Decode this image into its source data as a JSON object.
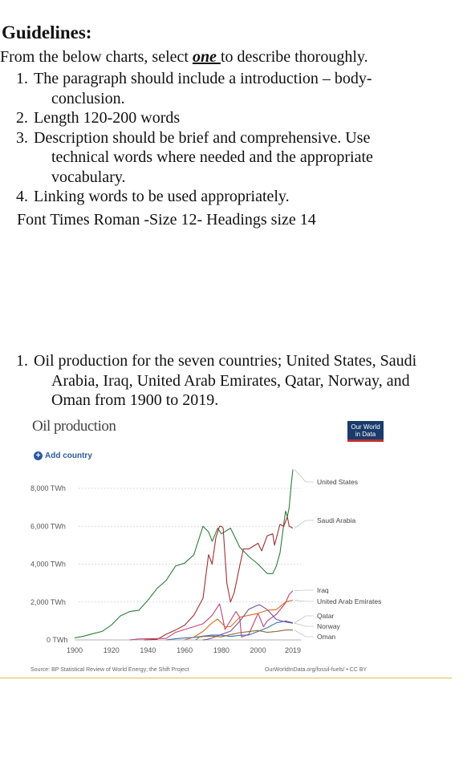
{
  "guidelines": {
    "title": "Guidelines:",
    "intro_before": "From the below charts, select ",
    "intro_emphasis": "one ",
    "intro_after": "to describe thoroughly.",
    "items": [
      {
        "num": "1.",
        "lines": [
          "The paragraph should include a introduction – body-",
          "conclusion."
        ]
      },
      {
        "num": "2.",
        "lines": [
          "Length 120-200 words"
        ]
      },
      {
        "num": "3.",
        "lines": [
          "Description should be brief and comprehensive. Use",
          "technical words where needed and the appropriate",
          "vocabulary."
        ]
      },
      {
        "num": "4.",
        "lines": [
          "Linking words to be used appropriately."
        ]
      }
    ],
    "font_note": "Font Times Roman -Size 12- Headings size 14"
  },
  "task": {
    "num": "1.",
    "lines": [
      "Oil production for the seven countries; United States, Saudi",
      "Arabia, Iraq, United Arab Emirates, Qatar, Norway, and",
      "Oman from 1900 to 2019."
    ]
  },
  "chart": {
    "title": "Oil production",
    "logo_line1": "Our World",
    "logo_line2": "in Data",
    "add_country": "Add country",
    "source": "Source: BP Statistical Review of World Energy; the Shift Project",
    "license": "OurWorldInData.org/fossil-fuels/ • CC BY"
  },
  "chart_data": {
    "type": "line",
    "title": "Oil production",
    "ylabel": "",
    "xlabel": "",
    "x_ticks": [
      "1900",
      "1920",
      "1940",
      "1960",
      "1980",
      "2000",
      "2019"
    ],
    "y_ticks": [
      "0 TWh",
      "2,000 TWh",
      "4,000 TWh",
      "6,000 TWh",
      "8,000 TWh"
    ],
    "xlim": [
      1900,
      2019
    ],
    "ylim": [
      0,
      8000
    ],
    "grid": true,
    "legend": "right",
    "series": [
      {
        "name": "United States",
        "color": "#2e7d3a",
        "points": [
          [
            1900,
            100
          ],
          [
            1905,
            200
          ],
          [
            1910,
            330
          ],
          [
            1915,
            450
          ],
          [
            1920,
            780
          ],
          [
            1925,
            1270
          ],
          [
            1930,
            1500
          ],
          [
            1935,
            1560
          ],
          [
            1940,
            2100
          ],
          [
            1945,
            2720
          ],
          [
            1950,
            3150
          ],
          [
            1955,
            3900
          ],
          [
            1960,
            4050
          ],
          [
            1965,
            4500
          ],
          [
            1970,
            6000
          ],
          [
            1973,
            5700
          ],
          [
            1975,
            5200
          ],
          [
            1978,
            5900
          ],
          [
            1980,
            5600
          ],
          [
            1985,
            5900
          ],
          [
            1990,
            4900
          ],
          [
            1995,
            4400
          ],
          [
            2000,
            4000
          ],
          [
            2005,
            3500
          ],
          [
            2008,
            3500
          ],
          [
            2010,
            3900
          ],
          [
            2012,
            4600
          ],
          [
            2014,
            6100
          ],
          [
            2015,
            6800
          ],
          [
            2016,
            6500
          ],
          [
            2017,
            7000
          ],
          [
            2018,
            8100
          ],
          [
            2019,
            9000
          ]
        ]
      },
      {
        "name": "Saudi Arabia",
        "color": "#a32f2f",
        "points": [
          [
            1938,
            0
          ],
          [
            1945,
            30
          ],
          [
            1950,
            300
          ],
          [
            1955,
            520
          ],
          [
            1960,
            780
          ],
          [
            1965,
            1300
          ],
          [
            1970,
            2200
          ],
          [
            1973,
            4500
          ],
          [
            1975,
            4000
          ],
          [
            1977,
            5400
          ],
          [
            1979,
            6000
          ],
          [
            1980,
            6000
          ],
          [
            1981,
            5900
          ],
          [
            1983,
            3000
          ],
          [
            1985,
            2000
          ],
          [
            1987,
            2500
          ],
          [
            1990,
            3900
          ],
          [
            1992,
            4800
          ],
          [
            1995,
            4800
          ],
          [
            2000,
            5100
          ],
          [
            2002,
            4700
          ],
          [
            2005,
            5500
          ],
          [
            2008,
            5600
          ],
          [
            2009,
            5000
          ],
          [
            2012,
            6100
          ],
          [
            2014,
            6000
          ],
          [
            2016,
            6500
          ],
          [
            2017,
            6000
          ],
          [
            2019,
            5900
          ]
        ]
      },
      {
        "name": "Iraq",
        "color": "#c0427a",
        "points": [
          [
            1930,
            0
          ],
          [
            1935,
            50
          ],
          [
            1950,
            80
          ],
          [
            1955,
            400
          ],
          [
            1960,
            550
          ],
          [
            1965,
            700
          ],
          [
            1970,
            850
          ],
          [
            1975,
            1300
          ],
          [
            1979,
            1900
          ],
          [
            1980,
            1500
          ],
          [
            1982,
            550
          ],
          [
            1988,
            1500
          ],
          [
            1990,
            1200
          ],
          [
            1991,
            150
          ],
          [
            1995,
            300
          ],
          [
            2000,
            1400
          ],
          [
            2003,
            700
          ],
          [
            2005,
            1000
          ],
          [
            2010,
            1350
          ],
          [
            2015,
            1950
          ],
          [
            2017,
            2400
          ],
          [
            2019,
            2600
          ]
        ]
      },
      {
        "name": "United Arab Emirates",
        "color": "#e06a1f",
        "points": [
          [
            1960,
            0
          ],
          [
            1965,
            150
          ],
          [
            1970,
            450
          ],
          [
            1975,
            900
          ],
          [
            1978,
            1100
          ],
          [
            1982,
            700
          ],
          [
            1985,
            700
          ],
          [
            1990,
            1200
          ],
          [
            1995,
            1300
          ],
          [
            2000,
            1400
          ],
          [
            2005,
            1560
          ],
          [
            2010,
            1600
          ],
          [
            2015,
            2000
          ],
          [
            2019,
            2100
          ]
        ]
      },
      {
        "name": "Qatar",
        "color": "#3d6fb6",
        "points": [
          [
            1950,
            0
          ],
          [
            1955,
            60
          ],
          [
            1960,
            100
          ],
          [
            1965,
            130
          ],
          [
            1970,
            200
          ],
          [
            1975,
            260
          ],
          [
            1980,
            250
          ],
          [
            1985,
            180
          ],
          [
            1990,
            240
          ],
          [
            1995,
            260
          ],
          [
            2000,
            450
          ],
          [
            2005,
            640
          ],
          [
            2010,
            900
          ],
          [
            2015,
            1000
          ],
          [
            2019,
            900
          ]
        ]
      },
      {
        "name": "Norway",
        "color": "#7a4ea3",
        "points": [
          [
            1970,
            0
          ],
          [
            1972,
            20
          ],
          [
            1975,
            100
          ],
          [
            1980,
            290
          ],
          [
            1985,
            460
          ],
          [
            1990,
            980
          ],
          [
            1995,
            1620
          ],
          [
            2000,
            1840
          ],
          [
            2001,
            1850
          ],
          [
            2005,
            1600
          ],
          [
            2010,
            1080
          ],
          [
            2015,
            950
          ],
          [
            2019,
            880
          ]
        ]
      },
      {
        "name": "Oman",
        "color": "#8a6a3a",
        "points": [
          [
            1966,
            0
          ],
          [
            1968,
            150
          ],
          [
            1970,
            180
          ],
          [
            1975,
            200
          ],
          [
            1980,
            160
          ],
          [
            1985,
            280
          ],
          [
            1990,
            380
          ],
          [
            1995,
            440
          ],
          [
            2000,
            500
          ],
          [
            2005,
            400
          ],
          [
            2010,
            450
          ],
          [
            2015,
            520
          ],
          [
            2019,
            520
          ]
        ]
      }
    ]
  }
}
